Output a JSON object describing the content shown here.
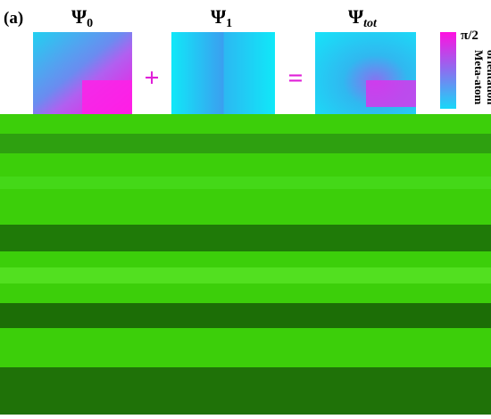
{
  "panel_label": "(a)",
  "panels": [
    {
      "symbol": "Ψ",
      "subscript": "0"
    },
    {
      "symbol": "Ψ",
      "subscript": "1"
    },
    {
      "symbol": "Ψ",
      "subscript": "tot"
    }
  ],
  "operators": [
    "+",
    "="
  ],
  "colorbar": {
    "max_label": "π/2",
    "title_lines": [
      "Meta-atom",
      "orientation"
    ]
  }
}
